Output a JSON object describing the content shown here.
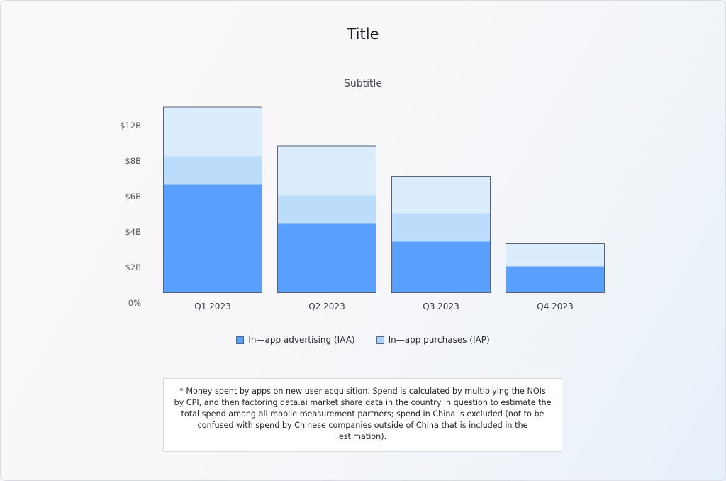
{
  "title": "Title",
  "subtitle": "Subtitle",
  "chart_data": {
    "type": "bar",
    "stacked": true,
    "categories": [
      "Q1 2023",
      "Q2 2023",
      "Q3  2023",
      "Q4 2023"
    ],
    "series": [
      {
        "name": "In—app advertising (IAA)",
        "values": [
          6.1,
          3.9,
          2.9,
          1.5
        ],
        "color": "#589ffe"
      },
      {
        "name": "In—app purchases (IAP)",
        "values": [
          1.6,
          1.6,
          1.6,
          0.0
        ],
        "color": "#bcdcfb"
      },
      {
        "name": "",
        "values": [
          2.8,
          2.8,
          2.1,
          1.3
        ],
        "color": "#dbecfc"
      }
    ],
    "y_ticks": [
      "0%",
      "$2B",
      "$4B",
      "$6B",
      "$8B",
      "$12B"
    ],
    "ylim": [
      0,
      10.5
    ],
    "grid": false,
    "legend_position": "bottom"
  },
  "legend": {
    "items": [
      {
        "label": "In—app advertising (IAA)",
        "color": "#589ffe"
      },
      {
        "label": "In—app purchases (IAP)",
        "color": "#a9d2fb"
      }
    ]
  },
  "footnote": "* Money spent by apps on new user acquisition. Spend is calculated by multiplying the NOIs by CPI, and then factoring data.ai market share data in the country in question to estimate the total spend among all mobile measurement partners; spend in China is excluded (not to be confused with spend by Chinese companies outside of China that is included in the estimation)."
}
